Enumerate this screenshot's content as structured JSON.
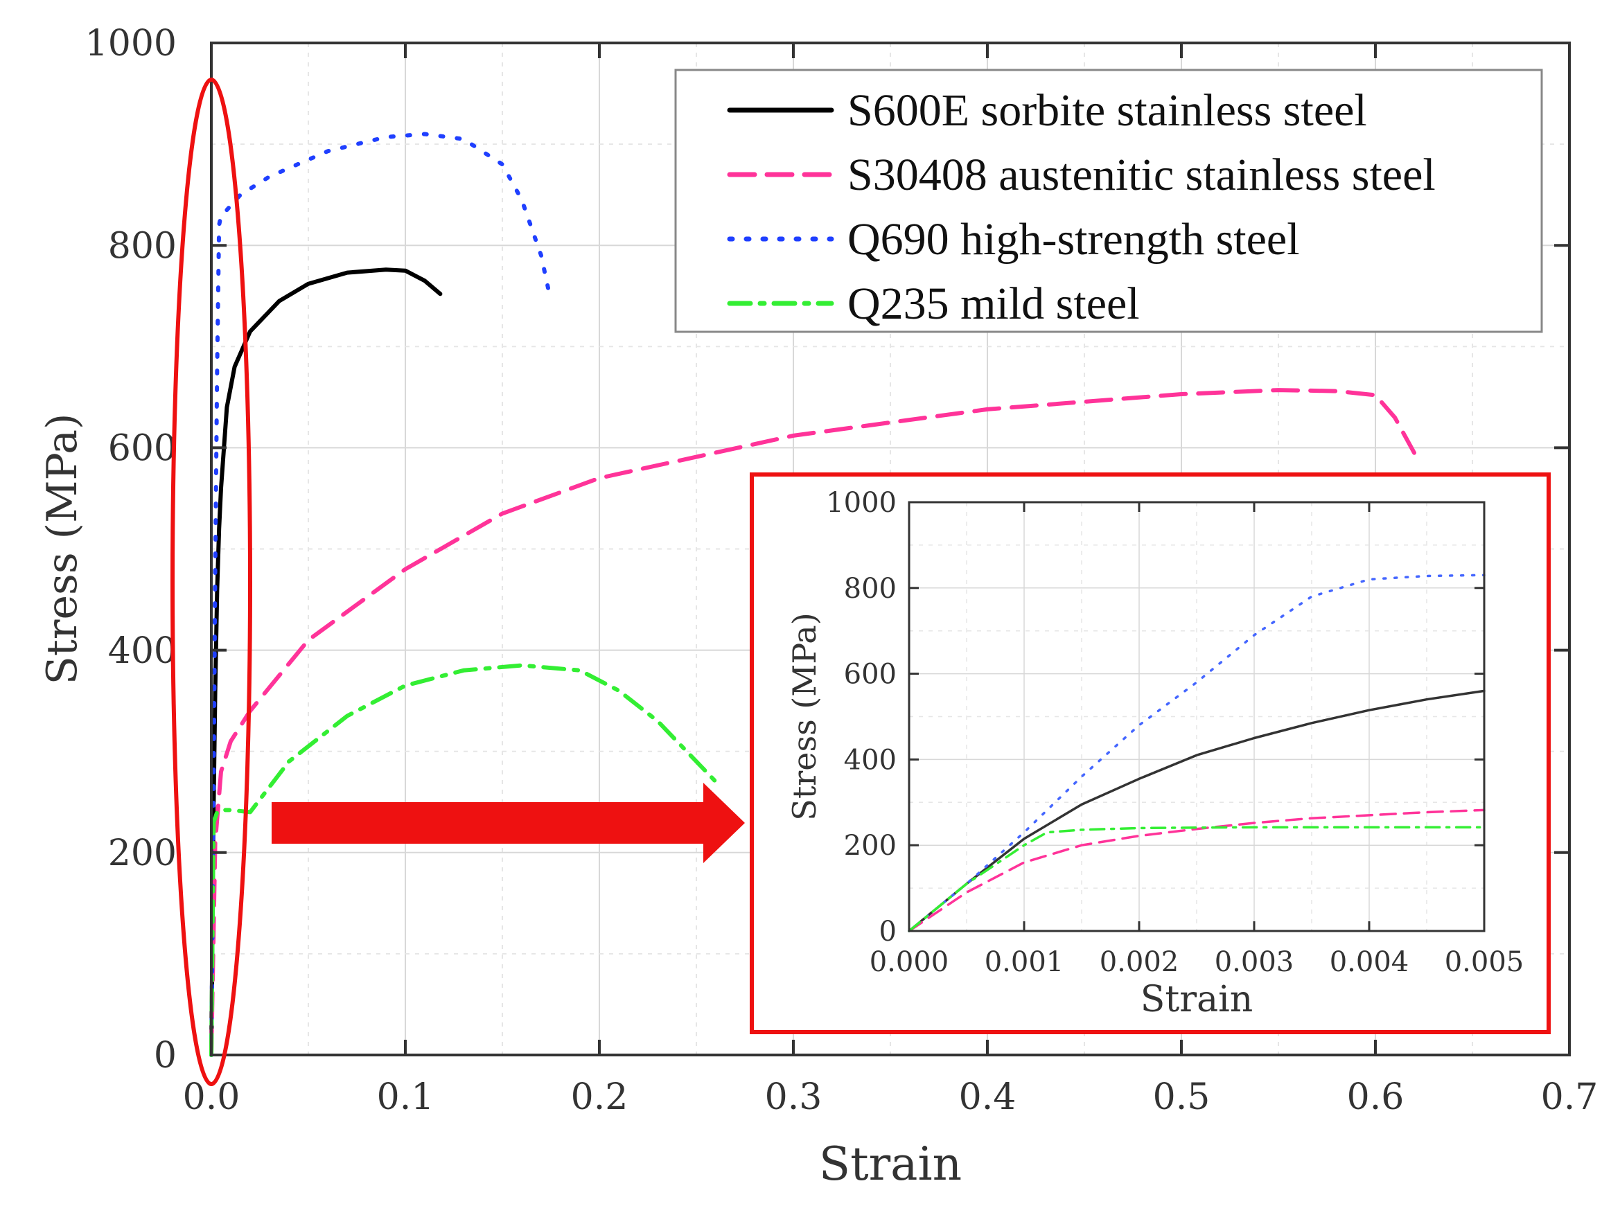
{
  "chart_data": [
    {
      "type": "line",
      "xlabel": "Strain",
      "ylabel": "Stress (MPa)",
      "xlim": [
        0,
        0.7
      ],
      "ylim": [
        0,
        1000
      ],
      "grid": true,
      "legend_position": "top-right",
      "xticks": [
        0.0,
        0.1,
        0.2,
        0.3,
        0.4,
        0.5,
        0.6,
        0.7
      ],
      "xtick_labels": [
        "0.0",
        "0.1",
        "0.2",
        "0.3",
        "0.4",
        "0.5",
        "0.6",
        "0.7"
      ],
      "yticks": [
        0,
        200,
        400,
        600,
        800,
        1000
      ],
      "ytick_labels": [
        "0",
        "200",
        "400",
        "600",
        "800",
        "1000"
      ],
      "series": [
        {
          "name": "S600E sorbite stainless steel",
          "color": "#000000",
          "dash": "solid",
          "x": [
            0,
            0.001,
            0.002,
            0.003,
            0.004,
            0.005,
            0.008,
            0.012,
            0.02,
            0.035,
            0.05,
            0.07,
            0.09,
            0.1,
            0.11,
            0.118
          ],
          "y": [
            0,
            220,
            360,
            460,
            520,
            560,
            640,
            680,
            715,
            745,
            762,
            773,
            776,
            775,
            765,
            752
          ]
        },
        {
          "name": "S30408 austenitic stainless steel",
          "color": "#ff3399",
          "dash": "dashed",
          "x": [
            0,
            0.002,
            0.005,
            0.01,
            0.02,
            0.05,
            0.1,
            0.15,
            0.2,
            0.3,
            0.4,
            0.5,
            0.55,
            0.58,
            0.6,
            0.61,
            0.62
          ],
          "y": [
            0,
            210,
            280,
            310,
            340,
            410,
            480,
            535,
            570,
            612,
            638,
            653,
            657,
            656,
            652,
            630,
            595
          ]
        },
        {
          "name": "Q690 high-strength steel",
          "color": "#1f3fff",
          "dash": "dotted",
          "x": [
            0,
            0.001,
            0.002,
            0.003,
            0.004,
            0.005,
            0.008,
            0.015,
            0.03,
            0.06,
            0.09,
            0.11,
            0.13,
            0.15,
            0.16,
            0.17,
            0.175
          ],
          "y": [
            0,
            220,
            480,
            680,
            820,
            830,
            835,
            850,
            868,
            893,
            907,
            910,
            905,
            880,
            845,
            790,
            745
          ]
        },
        {
          "name": "Q235 mild steel",
          "color": "#33ee33",
          "dash": "dashdot",
          "x": [
            0,
            0.001,
            0.0012,
            0.003,
            0.005,
            0.01,
            0.02,
            0.04,
            0.07,
            0.1,
            0.13,
            0.16,
            0.19,
            0.21,
            0.23,
            0.25,
            0.26
          ],
          "y": [
            0,
            200,
            230,
            240,
            242,
            242,
            240,
            290,
            335,
            365,
            380,
            385,
            380,
            360,
            330,
            290,
            270
          ]
        }
      ]
    },
    {
      "type": "line",
      "inset": true,
      "xlabel": "Strain",
      "ylabel": "Stress (MPa)",
      "xlim": [
        0,
        0.005
      ],
      "ylim": [
        0,
        1000
      ],
      "grid": true,
      "xticks": [
        0.0,
        0.001,
        0.002,
        0.003,
        0.004,
        0.005
      ],
      "xtick_labels": [
        "0.000",
        "0.001",
        "0.002",
        "0.003",
        "0.004",
        "0.005"
      ],
      "yticks": [
        0,
        200,
        400,
        600,
        800,
        1000
      ],
      "ytick_labels": [
        "0",
        "200",
        "400",
        "600",
        "800",
        "1000"
      ],
      "series": [
        {
          "name": "S600E sorbite stainless steel",
          "color": "#333333",
          "dash": "solid",
          "x": [
            0,
            0.0005,
            0.001,
            0.0015,
            0.002,
            0.0025,
            0.003,
            0.0035,
            0.004,
            0.0045,
            0.005
          ],
          "y": [
            0,
            110,
            215,
            295,
            355,
            410,
            450,
            485,
            515,
            540,
            560
          ]
        },
        {
          "name": "S30408 austenitic stainless steel",
          "color": "#ff3399",
          "dash": "dashed",
          "x": [
            0,
            0.0005,
            0.001,
            0.0015,
            0.002,
            0.0025,
            0.003,
            0.0035,
            0.004,
            0.0045,
            0.005
          ],
          "y": [
            0,
            90,
            160,
            200,
            222,
            238,
            252,
            263,
            270,
            277,
            282
          ]
        },
        {
          "name": "Q690 high-strength steel",
          "color": "#4466ff",
          "dash": "dotted",
          "x": [
            0,
            0.0005,
            0.001,
            0.0015,
            0.002,
            0.0025,
            0.003,
            0.0035,
            0.004,
            0.0045,
            0.005
          ],
          "y": [
            0,
            110,
            230,
            360,
            480,
            580,
            690,
            780,
            820,
            828,
            830
          ]
        },
        {
          "name": "Q235 mild steel",
          "color": "#33ee33",
          "dash": "dashdot",
          "x": [
            0,
            0.0005,
            0.001,
            0.0012,
            0.0015,
            0.002,
            0.0025,
            0.003,
            0.0035,
            0.004,
            0.0045,
            0.005
          ],
          "y": [
            0,
            110,
            200,
            230,
            236,
            240,
            241,
            242,
            242,
            242,
            242,
            242
          ]
        }
      ]
    }
  ],
  "annotations": {
    "highlight_color": "#ee1111",
    "arrow_color": "#ee1111"
  }
}
